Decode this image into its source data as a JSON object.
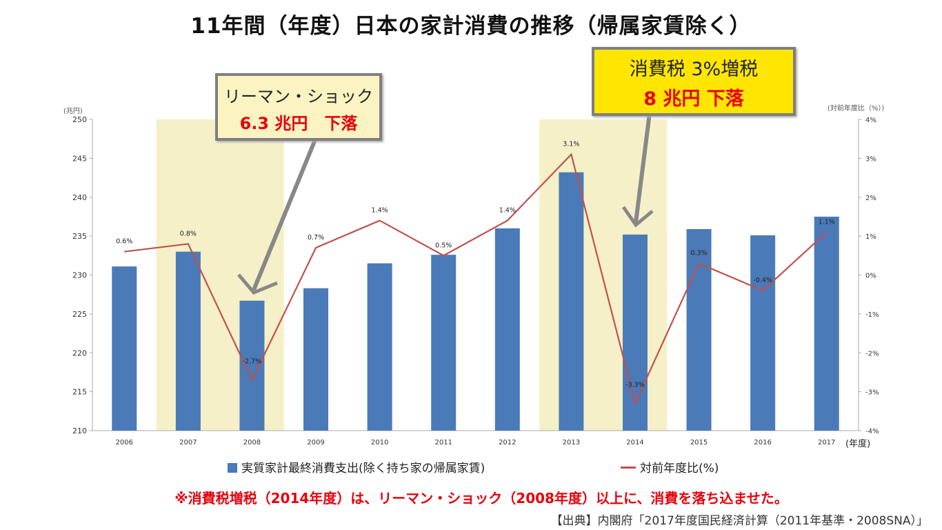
{
  "title": "11年間（年度）日本の家計消費の推移（帰属家賃除く）",
  "callouts": [
    {
      "line1": "リーマン・ショック",
      "line2": "6.3 兆円　下落"
    },
    {
      "line1": "消費税 3%増税",
      "line2": "8 兆円  下落"
    }
  ],
  "note": "※消費税増税（2014年度）は、リーマン・ショック（2008年度）以上に、消費を落ち込ませた。",
  "source": "【出典】内閣府「2017年度国民経済計算（2011年基準・2008SNA）」",
  "colors": {
    "bar": "#4a7ab8",
    "line": "#c0504d",
    "band": "#f5f0c8"
  },
  "chart_data": {
    "type": "bar",
    "categories": [
      "2006",
      "2007",
      "2008",
      "2009",
      "2010",
      "2011",
      "2012",
      "2013",
      "2014",
      "2015",
      "2016",
      "2017"
    ],
    "series": [
      {
        "name": "実質家計最終消費支出(除く持ち家の帰属家賃)",
        "type": "bar",
        "axis": "left",
        "values": [
          231.1,
          233.0,
          226.7,
          228.3,
          231.5,
          232.6,
          236.0,
          243.2,
          235.2,
          235.9,
          235.1,
          237.5
        ]
      },
      {
        "name": "対前年度比(%)",
        "type": "line",
        "axis": "right",
        "values": [
          0.6,
          0.8,
          -2.7,
          0.7,
          1.4,
          0.5,
          1.4,
          3.1,
          -3.3,
          0.3,
          -0.4,
          1.1
        ],
        "labels": [
          "0.6%",
          "0.8%",
          "-2.7%",
          "0.7%",
          "1.4%",
          "0.5%",
          "1.4%",
          "3.1%",
          "-3.3%",
          "0.3%",
          "-0.4%",
          "1.1%"
        ]
      }
    ],
    "ylabel": "(兆円)",
    "y2label": "(対前年度比（%）)",
    "xlabel": "(年度)",
    "ylim": [
      210,
      250
    ],
    "yticks": [
      "210",
      "215",
      "220",
      "225",
      "230",
      "235",
      "240",
      "245",
      "250"
    ],
    "y2lim": [
      -4,
      4
    ],
    "y2ticks": [
      "-4%",
      "-3%",
      "-2%",
      "-1%",
      "0%",
      "1%",
      "2%",
      "3%",
      "4%"
    ],
    "highlighted_years": [
      [
        "2007",
        "2008"
      ],
      [
        "2013",
        "2014"
      ]
    ],
    "legend": "bottom"
  }
}
